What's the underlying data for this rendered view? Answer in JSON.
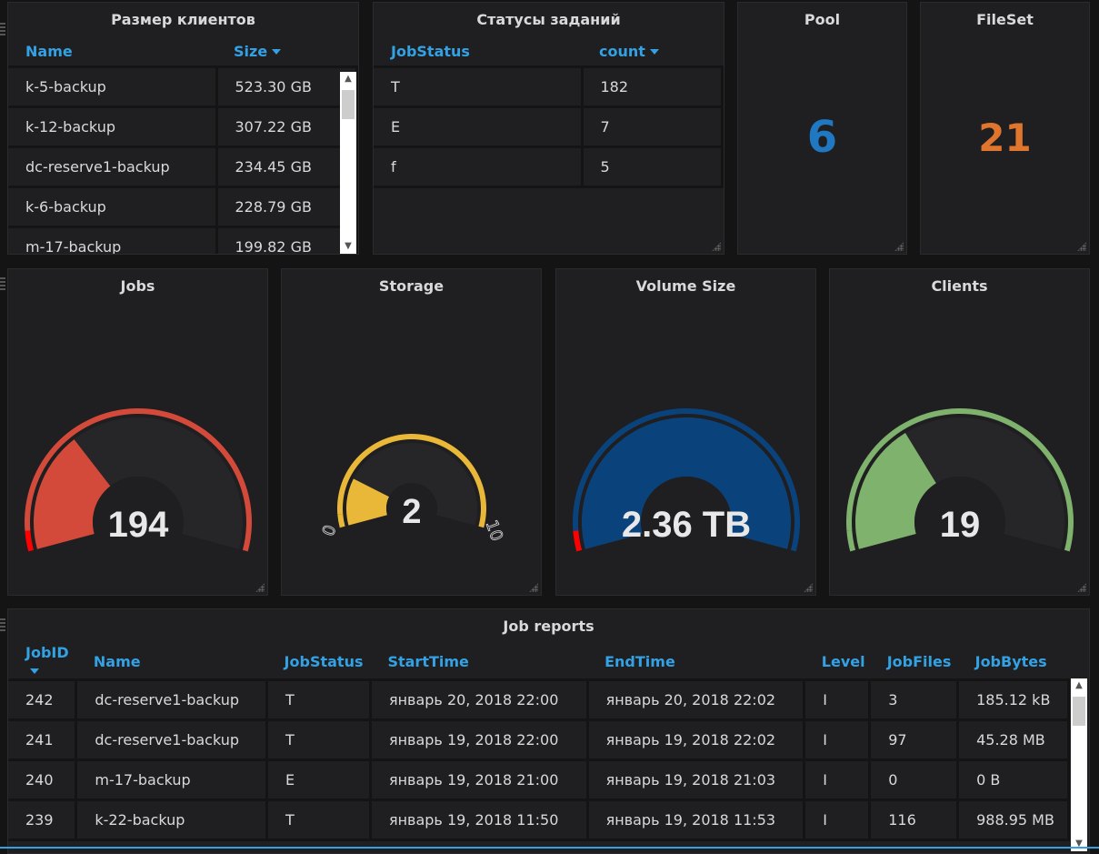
{
  "clients_panel": {
    "title": "Размер клиентов",
    "columns": [
      "Name",
      "Size"
    ],
    "rows": [
      [
        "k-5-backup",
        "523.30 GB"
      ],
      [
        "k-12-backup",
        "307.22 GB"
      ],
      [
        "dc-reserve1-backup",
        "234.45 GB"
      ],
      [
        "k-6-backup",
        "228.79 GB"
      ],
      [
        "m-17-backup",
        "199.82 GB"
      ]
    ]
  },
  "status_panel": {
    "title": "Статусы заданий",
    "columns": [
      "JobStatus",
      "count"
    ],
    "rows": [
      [
        "T",
        "182"
      ],
      [
        "E",
        "7"
      ],
      [
        "f",
        "5"
      ]
    ]
  },
  "pool": {
    "title": "Pool",
    "value": "6",
    "color": "#1f78c1"
  },
  "fileset": {
    "title": "FileSet",
    "value": "21",
    "color": "#e0752d"
  },
  "gauges": [
    {
      "title": "Jobs",
      "value": "194",
      "fraction": 0.32,
      "fill": "#d44a3a",
      "ring": "#d44a3a",
      "ring_start": "#ff0000",
      "min": "",
      "max": ""
    },
    {
      "title": "Storage",
      "value": "2",
      "fraction": 0.2,
      "fill": "#eab839",
      "ring": "#eab839",
      "ring_start": "#eab839",
      "min": "0",
      "max": "10"
    },
    {
      "title": "Volume Size",
      "value": "2.36 TB",
      "fraction": 1.0,
      "fill": "#0a437c",
      "ring": "#0a437c",
      "ring_start": "#ff0000",
      "min": "",
      "max": ""
    },
    {
      "title": "Clients",
      "value": "19",
      "fraction": 0.35,
      "fill": "#7eb26d",
      "ring": "#7eb26d",
      "ring_start": "#7eb26d",
      "min": "",
      "max": ""
    }
  ],
  "job_reports": {
    "title": "Job reports",
    "columns": [
      "JobID",
      "Name",
      "JobStatus",
      "StartTime",
      "EndTime",
      "Level",
      "JobFiles",
      "JobBytes"
    ],
    "rows": [
      [
        "242",
        "dc-reserve1-backup",
        "T",
        "январь 20, 2018 22:00",
        "январь 20, 2018 22:02",
        "I",
        "3",
        "185.12 kB"
      ],
      [
        "241",
        "dc-reserve1-backup",
        "T",
        "январь 19, 2018 22:00",
        "январь 19, 2018 22:02",
        "I",
        "97",
        "45.28 MB"
      ],
      [
        "240",
        "m-17-backup",
        "E",
        "январь 19, 2018 21:00",
        "январь 19, 2018 21:03",
        "I",
        "0",
        "0 B"
      ],
      [
        "239",
        "k-22-backup",
        "T",
        "январь 19, 2018 11:50",
        "январь 19, 2018 11:53",
        "I",
        "116",
        "988.95 MB"
      ]
    ]
  }
}
